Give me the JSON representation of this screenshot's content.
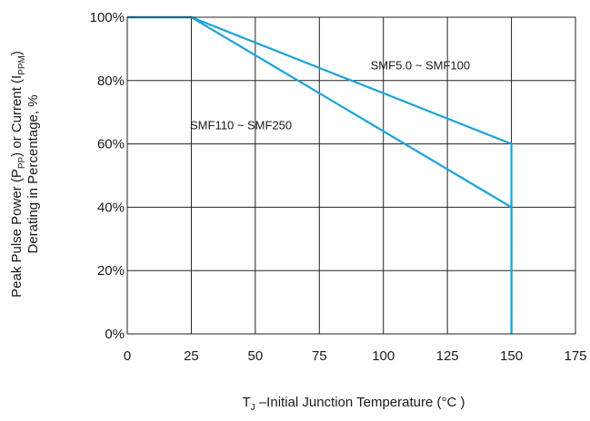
{
  "chart_data": {
    "type": "line",
    "title": "",
    "xlabel": {
      "prefix": "T",
      "sub": "J",
      "rest": " –Initial Junction Temperature (°C )"
    },
    "ylabel": {
      "line1": {
        "a": "Peak Pulse Power (P",
        "sub1": "PP",
        "b": ") or Current (I",
        "sub2": "PPM",
        "c": ")"
      },
      "line2": "Derating in Percentage, %"
    },
    "xlim": [
      0,
      175
    ],
    "ylim": [
      0,
      100
    ],
    "x_ticks": [
      0,
      25,
      50,
      75,
      100,
      125,
      150,
      175
    ],
    "x_tick_labels": [
      "0",
      "25",
      "50",
      "75",
      "100",
      "125",
      "150",
      "175"
    ],
    "y_ticks": [
      0,
      20,
      40,
      60,
      80,
      100
    ],
    "y_tick_labels": [
      "0%",
      "20%",
      "40%",
      "60%",
      "80%",
      "100%"
    ],
    "grid": true,
    "line_color": "#1aa3dc",
    "series": [
      {
        "name": "SMF5.0  ~  SMF100",
        "x": [
          0,
          25,
          150,
          150
        ],
        "y": [
          100,
          100,
          60,
          0
        ]
      },
      {
        "name": "SMF110 ~ SMF250",
        "x": [
          0,
          25,
          150,
          150
        ],
        "y": [
          100,
          100,
          40,
          0
        ]
      }
    ],
    "annotations": [
      {
        "text": "SMF5.0  ~  SMF100",
        "x": 95,
        "y": 85
      },
      {
        "text": "SMF110 ~ SMF250",
        "x": 24.5,
        "y": 66
      }
    ]
  }
}
